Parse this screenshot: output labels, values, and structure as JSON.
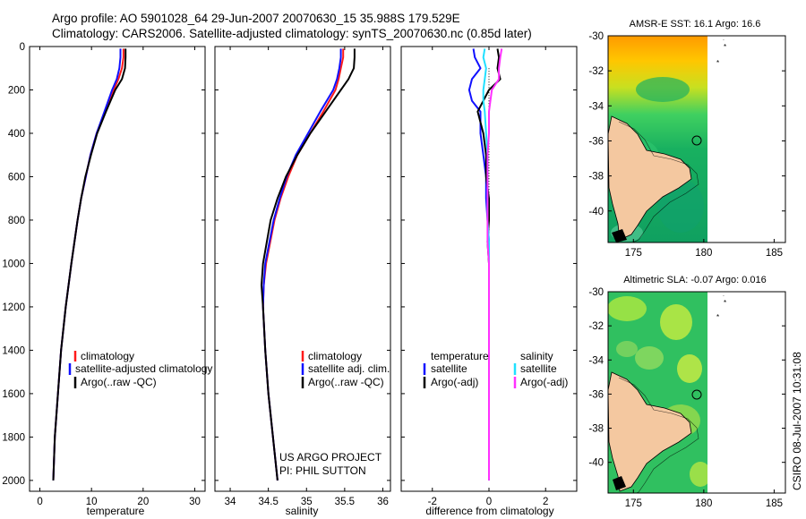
{
  "header": {
    "line1": "Argo profile: AO 5901028_64 29-Jun-2007 20070630_15 35.988S 179.529E",
    "line2": "Climatology: CARS2006. Satellite-adjusted climatology: synTS_20070630.nc (0.85d later)"
  },
  "colors": {
    "clim": "#ff1a1a",
    "sat": "#1010ff",
    "argo": "#000000",
    "sat_sal": "#20e0ff",
    "argo_sal": "#ff30ff"
  },
  "footer": {
    "project": "US ARGO PROJECT",
    "pi": "PI: PHIL SUTTON",
    "csiro": "CSIRO 08-Jul-2007 10:31:08"
  },
  "chart_data": [
    {
      "type": "line",
      "id": "temp",
      "xlabel": "temperature",
      "ylabel": "",
      "xlim": [
        -2,
        32
      ],
      "ylim": [
        2050,
        0
      ],
      "x_ticks": [
        "0",
        "10",
        "20",
        "30"
      ],
      "y_ticks": [
        "0",
        "200",
        "400",
        "600",
        "800",
        "1000",
        "1200",
        "1400",
        "1600",
        "1800",
        "2000"
      ],
      "legend": [
        "climatology",
        "satellite-adjusted climatology",
        "Argo(..raw -QC)"
      ],
      "depth": [
        10,
        50,
        100,
        150,
        200,
        300,
        400,
        500,
        600,
        700,
        800,
        1000,
        1200,
        1400,
        1600,
        1800,
        2000
      ],
      "series": [
        {
          "name": "climatology",
          "values": [
            16.2,
            16.2,
            15.9,
            15.2,
            14.3,
            12.6,
            11.0,
            9.8,
            8.9,
            8.0,
            7.3,
            6.1,
            5.0,
            4.1,
            3.5,
            2.9,
            2.6
          ]
        },
        {
          "name": "satellite-adjusted climatology",
          "values": [
            15.6,
            15.6,
            15.4,
            14.9,
            14.0,
            12.5,
            11.0,
            9.8,
            8.9,
            8.0,
            7.3,
            6.1,
            5.0,
            4.1,
            3.5,
            2.9,
            2.6
          ]
        },
        {
          "name": "Argo(..raw -QC)",
          "values": [
            16.6,
            16.6,
            16.5,
            15.9,
            14.6,
            12.8,
            11.1,
            9.9,
            8.8,
            8.0,
            7.3,
            6.1,
            5.0,
            4.1,
            3.5,
            2.9,
            2.6
          ]
        }
      ]
    },
    {
      "type": "line",
      "id": "sal",
      "xlabel": "salinity",
      "ylabel": "",
      "xlim": [
        33.8,
        36.1
      ],
      "ylim": [
        2050,
        0
      ],
      "x_ticks": [
        "34",
        "34.5",
        "35",
        "35.5",
        "36"
      ],
      "legend": [
        "climatology",
        "satellite adj. clim.",
        "Argo(..raw -QC)"
      ],
      "depth": [
        10,
        50,
        100,
        150,
        200,
        300,
        400,
        500,
        600,
        700,
        800,
        1000,
        1100,
        1200,
        1400,
        1600,
        1800,
        2000
      ],
      "series": [
        {
          "name": "climatology",
          "values": [
            35.48,
            35.48,
            35.45,
            35.42,
            35.38,
            35.22,
            35.05,
            34.88,
            34.76,
            34.66,
            34.58,
            34.47,
            34.44,
            34.43,
            34.46,
            34.5,
            34.56,
            34.62
          ]
        },
        {
          "name": "satellite adj. clim.",
          "values": [
            35.45,
            35.45,
            35.43,
            35.4,
            35.35,
            35.18,
            35.02,
            34.86,
            34.74,
            34.65,
            34.57,
            34.46,
            34.44,
            34.43,
            34.46,
            34.5,
            34.56,
            34.62
          ]
        },
        {
          "name": "Argo(..raw -QC)",
          "values": [
            35.63,
            35.63,
            35.62,
            35.55,
            35.45,
            35.25,
            35.05,
            34.88,
            34.73,
            34.62,
            34.53,
            34.43,
            34.41,
            34.43,
            34.46,
            34.5,
            34.56,
            34.62
          ]
        }
      ]
    },
    {
      "type": "line",
      "id": "diff",
      "xlabel": "difference from climatology",
      "ylabel": "",
      "xlim": [
        -3.1,
        3.1
      ],
      "ylim": [
        2050,
        0
      ],
      "x_ticks": [
        "-2",
        "0",
        "2"
      ],
      "legend_titles": [
        "temperature",
        "salinity"
      ],
      "legend": [
        "satellite",
        "Argo(-adj)",
        "satellite",
        "Argo(-adj)"
      ],
      "depth": [
        10,
        50,
        100,
        150,
        200,
        250,
        300,
        400,
        500,
        600,
        700,
        800,
        900,
        1000,
        1200,
        1400,
        1600,
        1800,
        2000
      ],
      "series": [
        {
          "name": "temperature satellite",
          "values": [
            -0.55,
            -0.5,
            -0.3,
            -0.6,
            -0.7,
            -0.6,
            -0.3,
            -0.3,
            -0.2,
            -0.1,
            -0.1,
            -0.05,
            0.0,
            0.0,
            0.0,
            0.0,
            0.0,
            0.0,
            0.0
          ]
        },
        {
          "name": "temperature Argo(-adj)",
          "values": [
            0.3,
            0.35,
            0.3,
            0.4,
            0.0,
            -0.2,
            -0.4,
            -0.2,
            -0.1,
            -0.1,
            0.0,
            0.0,
            -0.05,
            0.0,
            0.0,
            0.0,
            0.0,
            0.0,
            0.0
          ]
        },
        {
          "name": "salinity satellite",
          "values": [
            -0.15,
            -0.2,
            -0.1,
            -0.15,
            -0.2,
            -0.2,
            -0.15,
            -0.1,
            -0.05,
            -0.05,
            -0.05,
            -0.05,
            0.0,
            0.0,
            0.0,
            0.0,
            0.0,
            0.0,
            0.0
          ]
        },
        {
          "name": "salinity Argo(-adj)",
          "values": [
            0.45,
            0.4,
            0.35,
            0.35,
            0.1,
            0.05,
            0.0,
            0.0,
            -0.05,
            -0.05,
            -0.05,
            -0.05,
            -0.05,
            0.0,
            0.0,
            0.0,
            0.0,
            0.0,
            0.0
          ]
        }
      ]
    },
    {
      "type": "heatmap",
      "id": "sst",
      "title": "AMSR-E SST: 16.1  Argo: 16.6",
      "x_ticks": [
        "175",
        "180",
        "185"
      ],
      "y_ticks": [
        "-30",
        "-32",
        "-34",
        "-36",
        "-38",
        "-40"
      ],
      "xlim": [
        173.2,
        185.8
      ],
      "ylim": [
        -41.8,
        -30
      ],
      "float_lon": 179.53,
      "float_lat": -35.99
    },
    {
      "type": "heatmap",
      "id": "sla",
      "title": "Altimetric SLA: -0.07  Argo: 0.016",
      "x_ticks": [
        "175",
        "180",
        "185"
      ],
      "y_ticks": [
        "-30",
        "-32",
        "-34",
        "-36",
        "-38",
        "-40"
      ],
      "xlim": [
        173.2,
        185.8
      ],
      "ylim": [
        -41.8,
        -30
      ],
      "float_lon": 179.53,
      "float_lat": -35.99
    }
  ]
}
